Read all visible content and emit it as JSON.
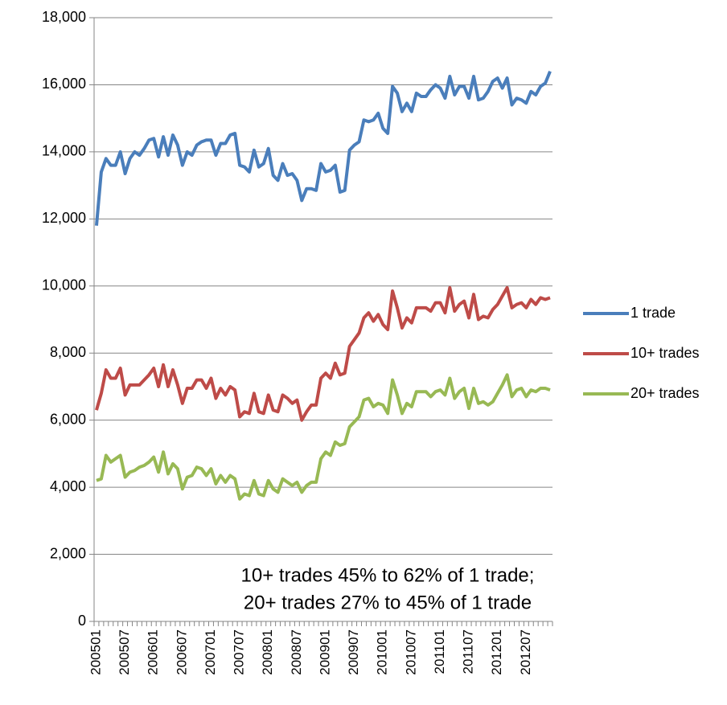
{
  "chart_data": {
    "type": "line",
    "categories": [
      "200501",
      null,
      null,
      null,
      null,
      null,
      "200507",
      null,
      null,
      null,
      null,
      null,
      "200601",
      null,
      null,
      null,
      null,
      null,
      "200607",
      null,
      null,
      null,
      null,
      null,
      "200701",
      null,
      null,
      null,
      null,
      null,
      "200707",
      null,
      null,
      null,
      null,
      null,
      "200801",
      null,
      null,
      null,
      null,
      null,
      "200807",
      null,
      null,
      null,
      null,
      null,
      "200901",
      null,
      null,
      null,
      null,
      null,
      "200907",
      null,
      null,
      null,
      null,
      null,
      "201001",
      null,
      null,
      null,
      null,
      null,
      "201007",
      null,
      null,
      null,
      null,
      null,
      "201101",
      null,
      null,
      null,
      null,
      null,
      "201107",
      null,
      null,
      null,
      null,
      null,
      "201201",
      null,
      null,
      null,
      null,
      null,
      "201207",
      null,
      null,
      null,
      null,
      null
    ],
    "series": [
      {
        "name": "1 trade",
        "color": "#4a7ebb",
        "values": [
          11800,
          13400,
          13800,
          13600,
          13600,
          14000,
          13350,
          13800,
          14000,
          13900,
          14100,
          14350,
          14400,
          13850,
          14450,
          13900,
          14500,
          14200,
          13600,
          14000,
          13900,
          14200,
          14300,
          14350,
          14350,
          13900,
          14250,
          14250,
          14500,
          14550,
          13600,
          13550,
          13400,
          14050,
          13550,
          13650,
          14100,
          13300,
          13150,
          13650,
          13300,
          13350,
          13150,
          12550,
          12900,
          12900,
          12850,
          13650,
          13400,
          13450,
          13600,
          12800,
          12850,
          14050,
          14200,
          14300,
          14950,
          14900,
          14950,
          15150,
          14700,
          14550,
          15950,
          15750,
          15200,
          15450,
          15200,
          15750,
          15650,
          15650,
          15850,
          16000,
          15900,
          15600,
          16250,
          15700,
          15950,
          15950,
          15600,
          16250,
          15550,
          15600,
          15800,
          16100,
          16200,
          15900,
          16200,
          15400,
          15600,
          15550,
          15450,
          15800,
          15700,
          15950,
          16050,
          16400
        ]
      },
      {
        "name": "10+ trades",
        "color": "#be4b48",
        "values": [
          6300,
          6800,
          7500,
          7250,
          7250,
          7550,
          6750,
          7050,
          7050,
          7050,
          7200,
          7350,
          7550,
          7000,
          7650,
          7000,
          7500,
          7050,
          6500,
          6950,
          6950,
          7200,
          7200,
          6950,
          7250,
          6650,
          6950,
          6750,
          7000,
          6900,
          6100,
          6250,
          6200,
          6800,
          6250,
          6200,
          6750,
          6300,
          6250,
          6750,
          6650,
          6500,
          6600,
          6000,
          6250,
          6450,
          6450,
          7250,
          7400,
          7250,
          7700,
          7350,
          7400,
          8200,
          8400,
          8600,
          9050,
          9200,
          8950,
          9150,
          8850,
          8700,
          9850,
          9350,
          8750,
          9050,
          8900,
          9350,
          9350,
          9350,
          9250,
          9500,
          9500,
          9200,
          9950,
          9250,
          9450,
          9550,
          9050,
          9750,
          9000,
          9100,
          9050,
          9300,
          9450,
          9700,
          9950,
          9350,
          9450,
          9500,
          9350,
          9600,
          9450,
          9650,
          9600,
          9650
        ]
      },
      {
        "name": "20+ trades",
        "color": "#98b954",
        "values": [
          4200,
          4250,
          4950,
          4750,
          4850,
          4950,
          4300,
          4450,
          4500,
          4600,
          4650,
          4750,
          4900,
          4450,
          5050,
          4400,
          4700,
          4550,
          3950,
          4300,
          4350,
          4600,
          4550,
          4350,
          4550,
          4100,
          4350,
          4150,
          4350,
          4250,
          3650,
          3800,
          3750,
          4200,
          3800,
          3750,
          4200,
          3950,
          3850,
          4250,
          4150,
          4050,
          4150,
          3850,
          4050,
          4150,
          4150,
          4850,
          5050,
          4950,
          5350,
          5250,
          5300,
          5800,
          5950,
          6100,
          6600,
          6650,
          6400,
          6500,
          6450,
          6200,
          7200,
          6750,
          6200,
          6500,
          6400,
          6850,
          6850,
          6850,
          6700,
          6850,
          6900,
          6750,
          7250,
          6650,
          6850,
          6950,
          6350,
          6950,
          6500,
          6550,
          6450,
          6550,
          6800,
          7050,
          7350,
          6700,
          6900,
          6950,
          6700,
          6900,
          6850,
          6950,
          6950,
          6900
        ]
      }
    ],
    "ylim": [
      0,
      18000
    ],
    "yticks": [
      0,
      {
        "value": 2000,
        "label": "2,000"
      },
      {
        "value": 4000,
        "label": "4,000"
      },
      {
        "value": 6000,
        "label": "6,000"
      },
      {
        "value": 8000,
        "label": "8,000"
      },
      {
        "value": 10000,
        "label": "10,000"
      },
      {
        "value": 12000,
        "label": "12,000"
      },
      {
        "value": 14000,
        "label": "14,000"
      },
      {
        "value": 16000,
        "label": "16,000"
      },
      {
        "value": 18000,
        "label": "18,000"
      }
    ],
    "grid": true,
    "legend": "right",
    "annotations": [
      "10+ trades 45% to 62% of 1 trade;",
      "20+ trades 27% to 45% of 1 trade"
    ]
  }
}
